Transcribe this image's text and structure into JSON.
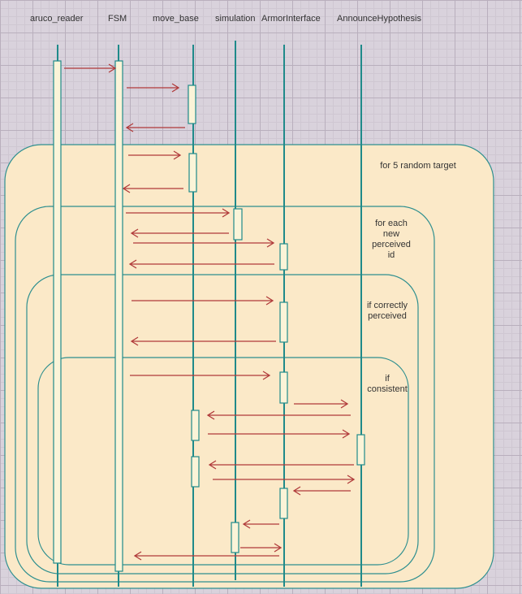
{
  "participants": [
    "aruco_reader",
    "FSM",
    "move_base",
    "simulation",
    "ArmorInterface",
    "AnnounceHypothesis"
  ],
  "frames": [
    {
      "label": "for 5 random target"
    },
    {
      "label": "for each\nnew\nperceived\nid"
    },
    {
      "label": "if correctly\nperceived"
    },
    {
      "label": "if\nconsistent"
    }
  ],
  "colors": {
    "frame_fill": "#fbe9c8",
    "frame_stroke": "#2e8f8f",
    "lifeline": "#1f8a8a",
    "activation_fill": "#fbf4d8",
    "arrow": "#b03a3a"
  }
}
